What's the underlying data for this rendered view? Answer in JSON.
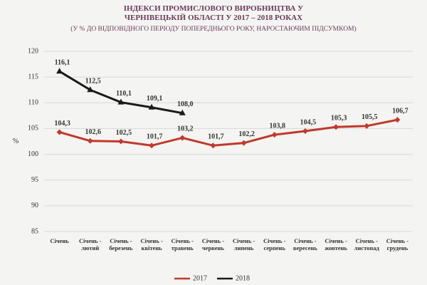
{
  "chart_data": {
    "type": "line",
    "title": "ІНДЕКСИ ПРОМИСЛОВОГО ВИРОБНИЦТВА У ЧЕРНІВЕЦЬКІЙ ОБЛАСТІ У 2017 – 2018 РОКАХ",
    "subtitle": "(У % ДО ВІДПОВІДНОГО ПЕРІОДУ ПОПЕРЕДНЬОГО РОКУ, НАРОСТАЮЧИМ ПІДСУМКОМ)",
    "y_label": "%",
    "categories": [
      "Січень",
      "Січень - лютий",
      "Січень - березень",
      "Січень - квітень",
      "Січень - травень",
      "Січень - червень",
      "Січень - липень",
      "Січень - серпень",
      "Січень - вересень",
      "Січень - жовтень",
      "Січень - листопад",
      "Січень - грудень"
    ],
    "series": [
      {
        "name": "2017",
        "color": "#c0392b",
        "values": [
          104.3,
          102.6,
          102.5,
          101.7,
          103.2,
          101.7,
          102.2,
          103.8,
          104.5,
          105.3,
          105.5,
          106.7
        ],
        "value_labels": [
          "104,3",
          "102,6",
          "102,5",
          "101,7",
          "103,2",
          "101,7",
          "102,2",
          "103,8",
          "104,5",
          "105,3",
          "105,5",
          "106,7"
        ]
      },
      {
        "name": "2018",
        "color": "#1a1a1a",
        "values": [
          116.1,
          112.5,
          110.1,
          109.1,
          108.0,
          null,
          null,
          null,
          null,
          null,
          null,
          null
        ],
        "value_labels": [
          "116,1",
          "112,5",
          "110,1",
          "109,1",
          "108,0",
          null,
          null,
          null,
          null,
          null,
          null,
          null
        ]
      }
    ],
    "ylim": [
      85,
      120
    ],
    "yticks": [
      85,
      90,
      95,
      100,
      105,
      110,
      115,
      120
    ],
    "grid": true,
    "legend": "bottom"
  }
}
